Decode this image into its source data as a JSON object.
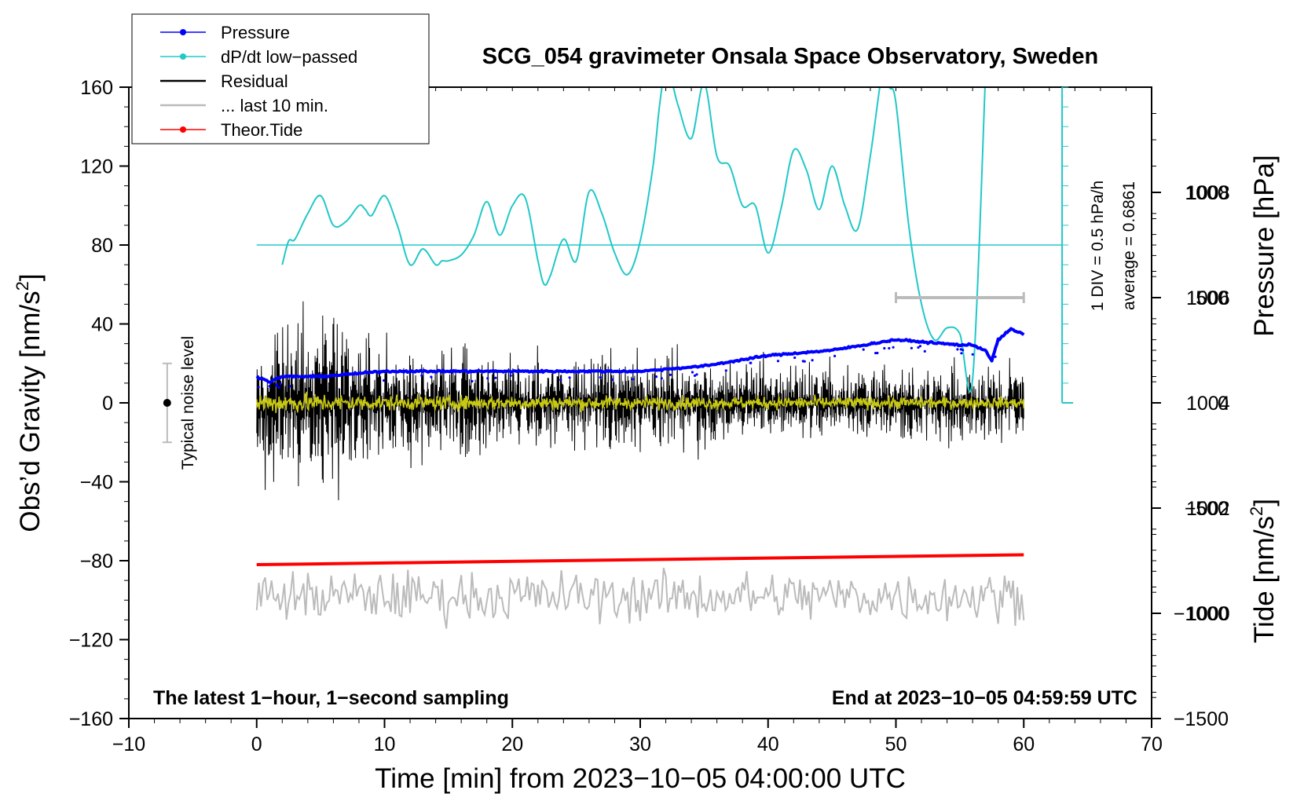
{
  "chart_data": {
    "type": "line",
    "title": "SCG_054 gravimeter Onsala Space Observatory, Sweden",
    "xlabel": "Time [min] from 2023−10−05 04:00:00 UTC",
    "ylabel_left": "Obs’d Gravity [nm/s",
    "ylabel_left_sup": "2",
    "ylabel_left_close": "]",
    "ylabel_right_pressure": "Pressure [hPa]",
    "ylabel_right_tide": "Tide [nm/s",
    "ylabel_right_tide_sup": "2",
    "ylabel_right_tide_close": "]",
    "xlim": [
      -10,
      70
    ],
    "ylim": [
      -160,
      160
    ],
    "x_ticks": [
      -10,
      0,
      10,
      20,
      30,
      40,
      50,
      60,
      70
    ],
    "x_tick_labels": [
      "−10",
      "0",
      "10",
      "20",
      "30",
      "40",
      "50",
      "60",
      "70"
    ],
    "y_ticks": [
      160,
      120,
      80,
      40,
      0,
      -40,
      -80,
      -120,
      -160
    ],
    "y_tick_labels": [
      "160",
      "120",
      "80",
      "40",
      "0",
      "−40",
      "−80",
      "−120",
      "−160"
    ],
    "pressure_axis": {
      "ticks": [
        1008,
        1006,
        1004,
        1002,
        1000
      ],
      "labels": [
        "1008",
        "1006",
        "1004",
        "1002",
        "1000"
      ],
      "range_hpa": [
        998.0,
        1010.0
      ]
    },
    "tide_axis": {
      "ticks": [
        1000,
        500,
        0,
        -500,
        -1000,
        -1500
      ],
      "labels": [
        "1000",
        "500",
        "0",
        "−500",
        "−1000",
        "−1500"
      ],
      "range": [
        -1500,
        1500
      ]
    },
    "legend": {
      "position": "top-left",
      "entries": [
        {
          "label": "Pressure",
          "color": "#0000ff",
          "marker": true
        },
        {
          "label": "dP/dt low−passed",
          "color": "#22c8c8",
          "marker": true
        },
        {
          "label": "Residual",
          "color": "#000000",
          "marker": false
        },
        {
          "label": "... last 10 min.",
          "color": "#bbbbbb",
          "marker": false
        },
        {
          "label": "Theor.Tide",
          "color": "#ff0000",
          "marker": true
        }
      ]
    },
    "annotations": {
      "noise_label": "Typical noise level",
      "noise_center": 0,
      "noise_half_range": 20,
      "dpdt_scale": "1 DIV = 0.5 hPa/h",
      "dpdt_average": "average = 0.6861",
      "bottom_left": "The latest 1−hour, 1−second sampling",
      "bottom_right": "End at 2023−10−05 04:59:59 UTC",
      "last10_bar_x": [
        50,
        60
      ]
    },
    "series": [
      {
        "name": "Pressure",
        "color": "#0000ff",
        "unit": "hPa",
        "x": [
          0,
          1,
          2,
          5,
          10,
          15,
          20,
          25,
          30,
          35,
          40,
          45,
          50,
          55,
          56,
          57,
          57.5,
          58,
          59,
          60
        ],
        "values": [
          1004.5,
          1004.4,
          1004.5,
          1004.5,
          1004.6,
          1004.6,
          1004.6,
          1004.6,
          1004.6,
          1004.7,
          1004.9,
          1005.0,
          1005.2,
          1005.1,
          1005.1,
          1005.0,
          1004.8,
          1005.2,
          1005.4,
          1005.3
        ]
      },
      {
        "name": "dP/dt low-passed",
        "color": "#22c8c8",
        "unit": "gravity-axis units",
        "x": [
          2,
          2.5,
          3,
          4,
          5,
          6,
          7,
          8,
          8.5,
          9,
          10,
          11,
          12,
          13,
          14,
          14.5,
          15,
          16,
          17,
          18,
          19,
          20,
          21,
          22,
          22.5,
          23,
          24,
          25,
          26,
          27,
          28,
          29,
          30,
          31,
          31.5,
          32,
          32.5,
          33,
          34,
          35,
          36,
          37,
          38,
          39,
          40,
          41,
          42,
          43,
          44,
          45,
          46,
          47,
          48,
          49,
          49.5,
          50,
          51,
          52,
          53,
          54,
          55,
          56,
          57
        ],
        "values": [
          70,
          82,
          83,
          96,
          105,
          90,
          92,
          100,
          98,
          95,
          105,
          90,
          70,
          78,
          70,
          72,
          72,
          75,
          85,
          102,
          85,
          100,
          104,
          72,
          60,
          65,
          83,
          72,
          107,
          96,
          76,
          65,
          82,
          120,
          150,
          170,
          162,
          150,
          134,
          162,
          125,
          120,
          100,
          100,
          76,
          98,
          128,
          118,
          98,
          120,
          100,
          88,
          125,
          170,
          160,
          152,
          90,
          50,
          32,
          38,
          35,
          12,
          165
        ]
      },
      {
        "name": "Residual",
        "color": "#000000",
        "unit": "nm/s2",
        "amplitude_envelope": [
          [
            0,
            45
          ],
          [
            5,
            60
          ],
          [
            10,
            35
          ],
          [
            20,
            30
          ],
          [
            30,
            30
          ],
          [
            40,
            25
          ],
          [
            50,
            22
          ],
          [
            60,
            22
          ]
        ]
      },
      {
        "name": "Residual smoothed",
        "color": "#c8c814",
        "amplitude_envelope": [
          [
            0,
            6
          ],
          [
            10,
            4
          ],
          [
            60,
            3
          ]
        ]
      },
      {
        "name": "... last 10 min.",
        "color": "#bbbbbb",
        "unit": "nm/s2",
        "offset": -98,
        "amplitude": 12
      },
      {
        "name": "Theor.Tide",
        "color": "#ff0000",
        "unit": "nm/s2",
        "x": [
          0,
          60
        ],
        "values": [
          -82,
          -77
        ]
      }
    ]
  }
}
